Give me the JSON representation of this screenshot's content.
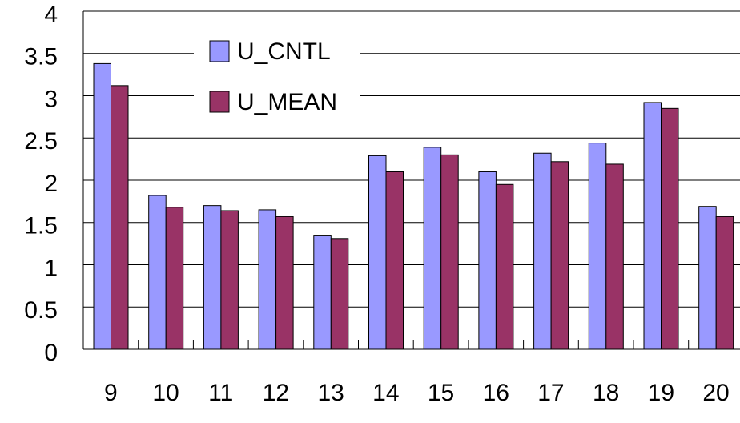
{
  "chart_data": {
    "type": "bar",
    "categories": [
      "9",
      "10",
      "11",
      "12",
      "13",
      "14",
      "15",
      "16",
      "17",
      "18",
      "19",
      "20"
    ],
    "series": [
      {
        "name": "U_CNTL",
        "color": "#9999ff",
        "values": [
          3.38,
          1.82,
          1.7,
          1.65,
          1.35,
          2.29,
          2.39,
          2.1,
          2.32,
          2.44,
          2.92,
          1.69
        ]
      },
      {
        "name": "U_MEAN",
        "color": "#993366",
        "values": [
          3.12,
          1.68,
          1.64,
          1.57,
          1.31,
          2.1,
          2.3,
          1.95,
          2.22,
          2.19,
          2.85,
          1.57
        ]
      }
    ],
    "ylim": [
      0,
      4
    ],
    "yticks": [
      0,
      0.5,
      1,
      1.5,
      2,
      2.5,
      3,
      3.5,
      4
    ],
    "grid": true
  }
}
